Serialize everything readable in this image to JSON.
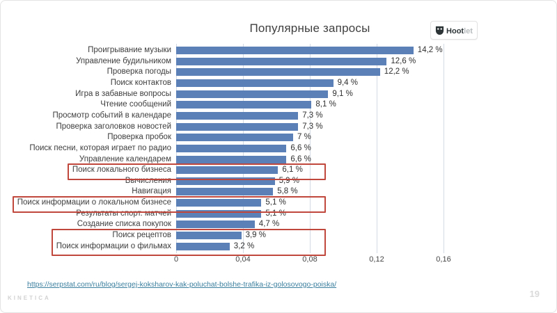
{
  "slide": {
    "title": "Популярные запросы",
    "page_number": "19",
    "brand": "KINETICA",
    "source_link": "https://serpstat.com/ru/blog/sergej-koksharov-kak-poluchat-bolshe-trafika-iz-golosovogo-poiska/"
  },
  "hootlet": {
    "icon": "owl-icon",
    "name_bold": "Hoot",
    "name_light": "let"
  },
  "chart_data": {
    "type": "bar",
    "orientation": "horizontal",
    "title": "Популярные запросы",
    "categories": [
      "Проигрывание музыки",
      "Управление будильником",
      "Проверка погоды",
      "Поиск контактов",
      "Игра в забавные вопросы",
      "Чтение сообщений",
      "Просмотр событий в календаре",
      "Проверка заголовков новостей",
      "Проверка пробок",
      "Поиск песни, которая играет по радио",
      "Управление календарем",
      "Поиск локального бизнеса",
      "Вычисления",
      "Навигация",
      "Поиск информации о локальном бизнесе",
      "Результаты спорт. матчей",
      "Создание списка покупок",
      "Поиск рецептов",
      "Поиск информации о фильмах"
    ],
    "values": [
      0.142,
      0.126,
      0.122,
      0.094,
      0.091,
      0.081,
      0.073,
      0.073,
      0.07,
      0.066,
      0.066,
      0.061,
      0.059,
      0.058,
      0.051,
      0.051,
      0.047,
      0.039,
      0.032
    ],
    "value_labels": [
      "14,2 %",
      "12,6 %",
      "12,2 %",
      "9,4 %",
      "9,1 %",
      "8,1 %",
      "7,3 %",
      "7,3 %",
      "7 %",
      "6,6 %",
      "6,6 %",
      "6,1 %",
      "5,9 %",
      "5,8 %",
      "5,1 %",
      "5,1 %",
      "4,7 %",
      "3,9 %",
      "3,2 %"
    ],
    "x_ticks": [
      "0",
      "0,04",
      "0,08",
      "0,12",
      "0,16"
    ],
    "x_tick_values": [
      0,
      0.04,
      0.08,
      0.12,
      0.16
    ],
    "xlim": [
      0,
      0.175
    ],
    "grid": true,
    "legend": false,
    "bar_color": "#5b80b8",
    "grid_color": "#d4dae3",
    "highlight_color": "#c0473c",
    "highlighted_groups": [
      [
        11
      ],
      [
        14
      ],
      [
        17,
        18
      ]
    ]
  }
}
